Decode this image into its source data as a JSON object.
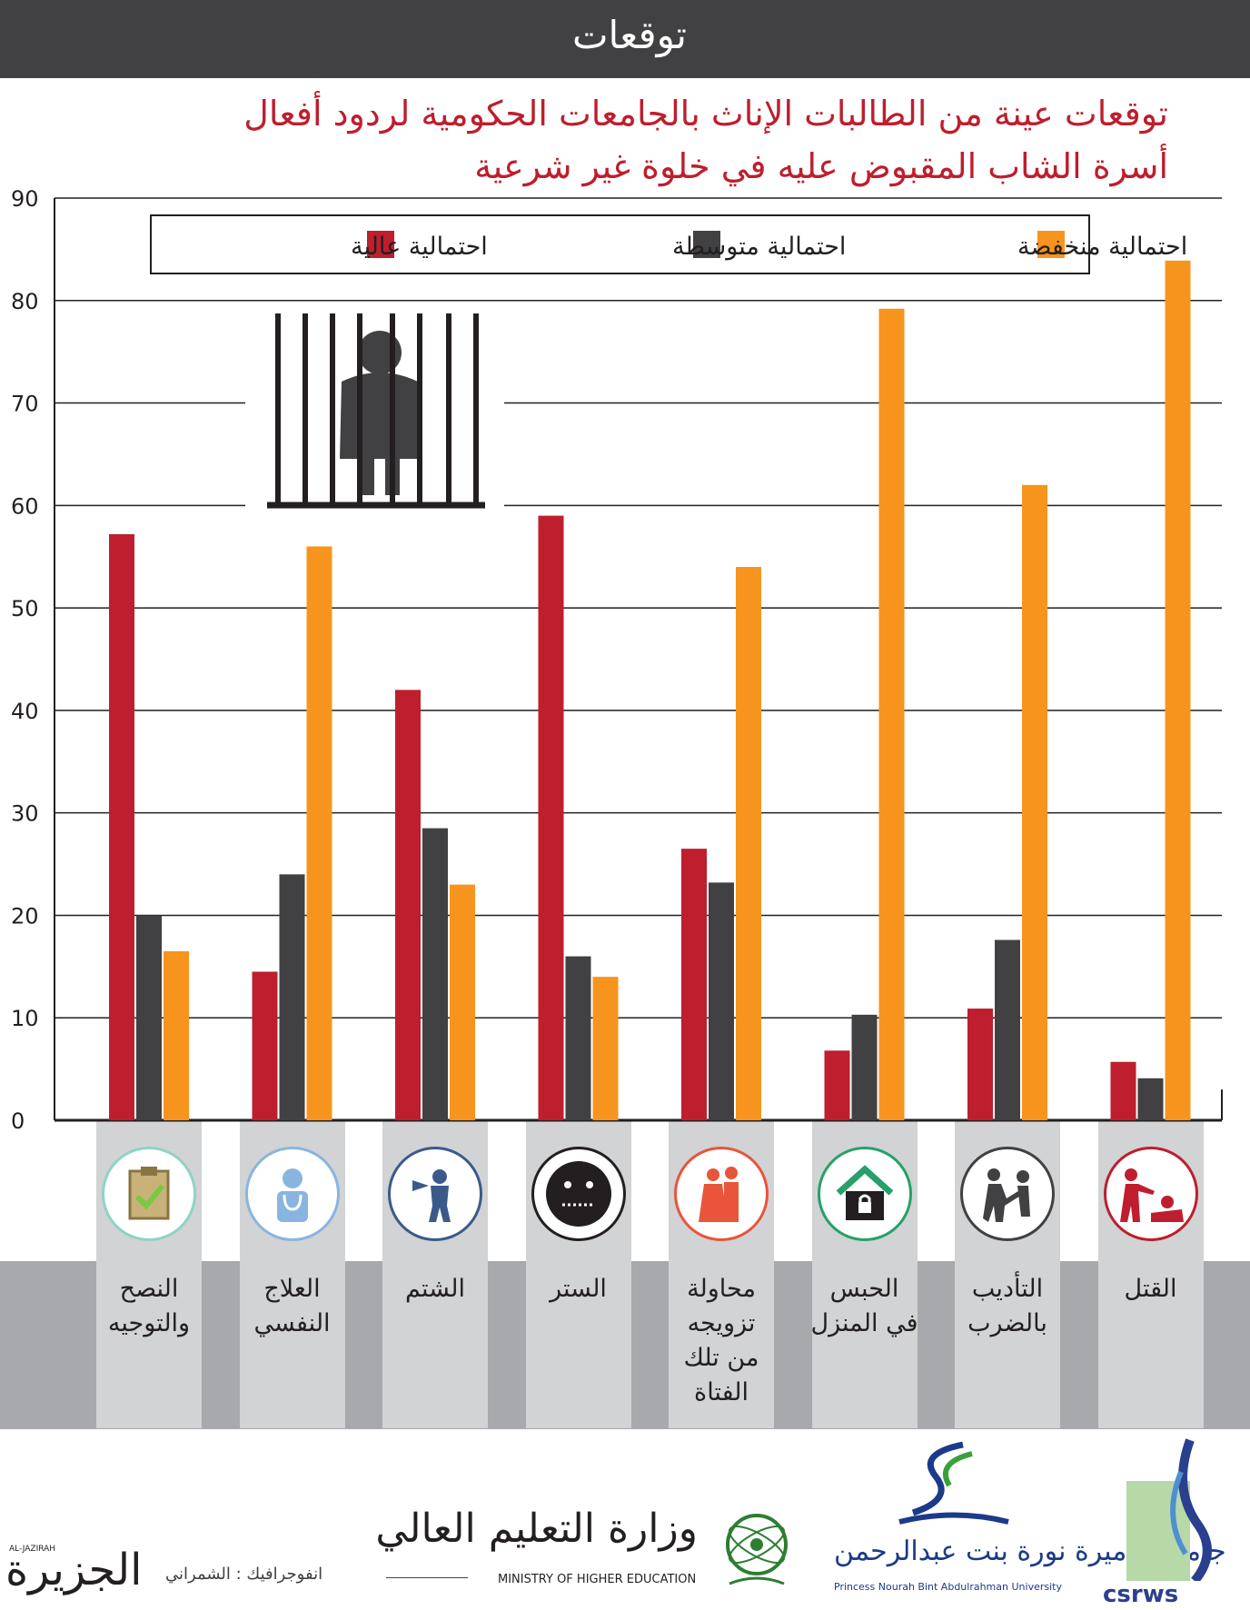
{
  "header": {
    "title": "توقعات"
  },
  "subtitle": {
    "line1": "توقعات عينة من الطالبات الإناث بالجامعات الحكومية لردود أفعال",
    "line2": "أسرة الشاب المقبوض عليه في خلوة غير شرعية"
  },
  "legend": {
    "high": "احتمالية عالية",
    "medium": "احتمالية متوسطة",
    "low": "احتمالية منخفضة"
  },
  "colors": {
    "high": "#be1e2d",
    "medium": "#414042",
    "low": "#f7941d",
    "header": "#414042"
  },
  "chart_data": {
    "type": "bar",
    "categories": [
      "النصح والتوجيه",
      "العلاج النفسي",
      "الشتم",
      "الستر",
      "محاولة تزويجه من تلك الفتاة",
      "الحبس في المنزل",
      "التأديب بالضرب",
      "القتل"
    ],
    "series": [
      {
        "name": "احتمالية عالية",
        "values": [
          57.2,
          14.5,
          42,
          59,
          26.5,
          6.8,
          10.9,
          5.7
        ]
      },
      {
        "name": "احتمالية متوسطة",
        "values": [
          20,
          24,
          28.5,
          16,
          23.2,
          10.3,
          17.6,
          4.1
        ]
      },
      {
        "name": "احتمالية منخفضة",
        "values": [
          16.5,
          56,
          23,
          14,
          54,
          79.2,
          62,
          83.9
        ]
      }
    ],
    "ylim": [
      0,
      90
    ],
    "yticks": [
      0,
      10,
      20,
      30,
      40,
      50,
      60,
      70,
      80,
      90
    ],
    "xlabel": "",
    "ylabel": "",
    "grid": true,
    "legend_position": "top"
  },
  "categories_display": [
    {
      "label": "النصح\nوالتوجيه",
      "icon": "clipboard-check-icon"
    },
    {
      "label": "العلاج\nالنفسي",
      "icon": "doctor-icon"
    },
    {
      "label": "الشتم",
      "icon": "megaphone-shouting-icon"
    },
    {
      "label": "الستر",
      "icon": "zipped-mouth-face-icon"
    },
    {
      "label": "محاولة\nتزويجه\nمن تلك\nالفتاة",
      "icon": "bride-groom-icon"
    },
    {
      "label": "الحبس\nفي المنزل",
      "icon": "locked-house-icon"
    },
    {
      "label": "التأديب\nبالضرب",
      "icon": "hitting-icon"
    },
    {
      "label": "القتل",
      "icon": "killing-icon"
    }
  ],
  "footer": {
    "credit": "انفوجرافيك : الشمراني",
    "jazirah_ar": "الجزيرة",
    "jazirah_en": "AL-JAZIRAH",
    "ministry_ar": "وزارة التعليم العالي",
    "ministry_en": "MINISTRY OF HIGHER EDUCATION",
    "pnu_ar": "جامعة الأميرة نورة بنت عبدالرحمن",
    "pnu_en": "Princess Nourah Bint Abdulrahman University",
    "csrws": "csrws"
  }
}
